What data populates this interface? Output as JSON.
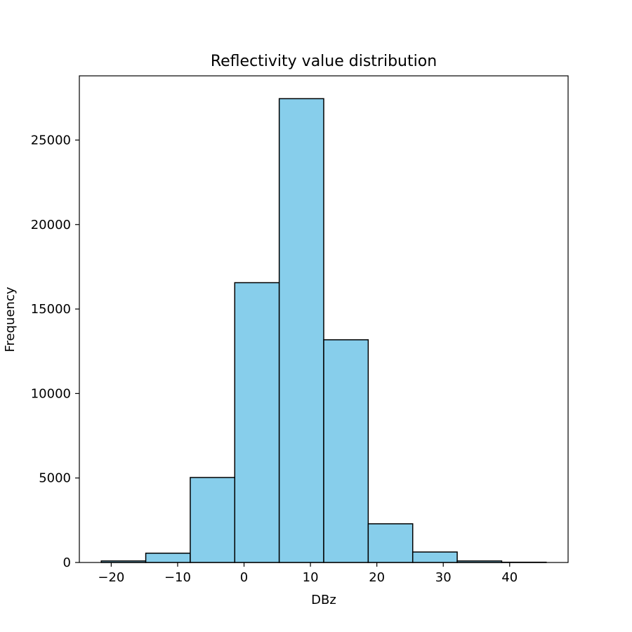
{
  "chart_data": {
    "type": "bar",
    "title": "Reflectivity value distribution",
    "xlabel": "DBz",
    "ylabel": "Frequency",
    "bin_edges": [
      -21.5,
      -14.8,
      -8.1,
      -1.4,
      5.3,
      12.0,
      18.7,
      25.4,
      32.1,
      38.8,
      45.5
    ],
    "values": [
      90,
      550,
      5030,
      16560,
      27450,
      13180,
      2290,
      620,
      90,
      15
    ],
    "xlim": [
      -24.8,
      48.8
    ],
    "ylim": [
      0,
      28800
    ],
    "xticks": [
      -20,
      -10,
      0,
      10,
      20,
      30,
      40
    ],
    "xtick_labels": [
      "−20",
      "−10",
      "0",
      "10",
      "20",
      "30",
      "40"
    ],
    "yticks": [
      0,
      5000,
      10000,
      15000,
      20000,
      25000
    ],
    "ytick_labels": [
      "0",
      "5000",
      "10000",
      "15000",
      "20000",
      "25000"
    ],
    "grid": false,
    "bar_color": "#87CEEB",
    "edge_color": "#000000"
  }
}
